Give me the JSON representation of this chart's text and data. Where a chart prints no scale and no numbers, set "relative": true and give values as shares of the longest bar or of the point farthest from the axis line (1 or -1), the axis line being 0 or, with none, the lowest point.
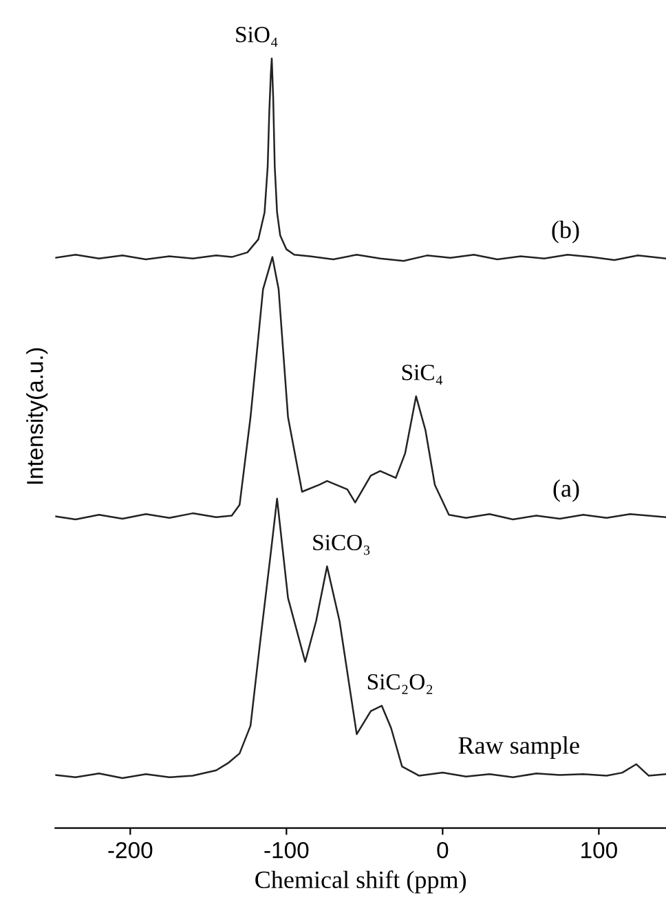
{
  "chart_data": {
    "type": "line",
    "relative": true,
    "xlabel": "Chemical shift (ppm)",
    "ylabel": "Intensity(a.u.)",
    "xlim": [
      -248,
      143
    ],
    "xticks": [
      -200,
      -100,
      0,
      100
    ],
    "tick_labels": "x",
    "grid": false,
    "legend": false,
    "marker": "none",
    "line_style": "solid",
    "series": [
      {
        "name": "(b)",
        "color": "#222222",
        "x": [
          -248,
          -235,
          -220,
          -205,
          -190,
          -175,
          -160,
          -145,
          -135,
          -125,
          -118,
          -114,
          -112,
          -111,
          -110,
          -109.4,
          -108.5,
          -107.5,
          -106,
          -104,
          -100,
          -95,
          -85,
          -70,
          -55,
          -40,
          -25,
          -10,
          5,
          20,
          35,
          50,
          65,
          80,
          95,
          110,
          125,
          143
        ],
        "values": [
          0.741,
          0.745,
          0.74,
          0.744,
          0.739,
          0.743,
          0.74,
          0.744,
          0.742,
          0.748,
          0.765,
          0.8,
          0.86,
          0.93,
          0.98,
          1.0,
          0.95,
          0.86,
          0.8,
          0.77,
          0.752,
          0.745,
          0.743,
          0.739,
          0.745,
          0.74,
          0.737,
          0.744,
          0.741,
          0.745,
          0.739,
          0.743,
          0.74,
          0.745,
          0.742,
          0.738,
          0.744,
          0.74
        ]
      },
      {
        "name": "(a)",
        "color": "#222222",
        "x": [
          -248,
          -235,
          -220,
          -205,
          -190,
          -175,
          -160,
          -145,
          -135,
          -130,
          -123,
          -115,
          -109,
          -105,
          -99,
          -90,
          -79,
          -74,
          -61,
          -56,
          -46,
          -40,
          -30,
          -24,
          -17,
          -11,
          -5,
          4,
          15,
          30,
          45,
          60,
          75,
          90,
          105,
          120,
          143
        ],
        "values": [
          0.405,
          0.401,
          0.407,
          0.402,
          0.408,
          0.403,
          0.409,
          0.404,
          0.406,
          0.42,
          0.534,
          0.7,
          0.742,
          0.7,
          0.534,
          0.437,
          0.446,
          0.451,
          0.44,
          0.423,
          0.458,
          0.464,
          0.455,
          0.487,
          0.561,
          0.517,
          0.446,
          0.407,
          0.403,
          0.408,
          0.401,
          0.406,
          0.402,
          0.407,
          0.403,
          0.408,
          0.404
        ]
      },
      {
        "name": "Raw sample",
        "color": "#222222",
        "x": [
          -248,
          -235,
          -220,
          -205,
          -190,
          -175,
          -160,
          -145,
          -137,
          -130,
          -123,
          -117,
          -110,
          -106,
          -99,
          -88,
          -81,
          -74,
          -66,
          -55,
          -46,
          -39,
          -33,
          -26,
          -15,
          0,
          15,
          30,
          45,
          60,
          75,
          90,
          105,
          115,
          124,
          132,
          143
        ],
        "values": [
          0.069,
          0.066,
          0.071,
          0.065,
          0.07,
          0.066,
          0.068,
          0.075,
          0.085,
          0.097,
          0.133,
          0.239,
          0.358,
          0.428,
          0.299,
          0.216,
          0.269,
          0.34,
          0.269,
          0.122,
          0.152,
          0.159,
          0.13,
          0.08,
          0.068,
          0.072,
          0.067,
          0.07,
          0.066,
          0.071,
          0.069,
          0.07,
          0.068,
          0.072,
          0.083,
          0.068,
          0.07
        ]
      }
    ],
    "annotations": [
      {
        "text": "SiO₄",
        "x": -109.4,
        "y": 1.0
      },
      {
        "text": "SiC₄",
        "x": -17,
        "y": 0.561
      },
      {
        "text": "SiCO₃",
        "x": -74,
        "y": 0.34
      },
      {
        "text": "SiC₂O₂",
        "x": -39,
        "y": 0.159
      }
    ]
  }
}
